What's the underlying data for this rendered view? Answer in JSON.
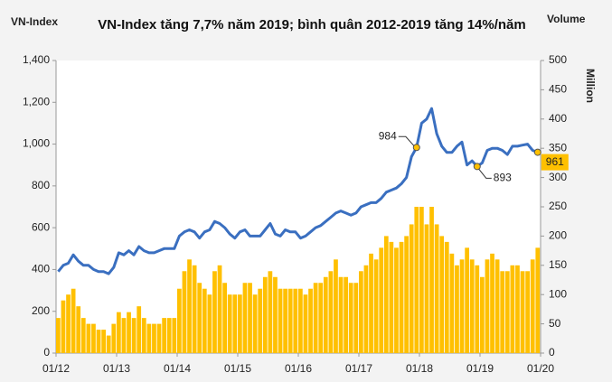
{
  "chart_data": {
    "type": "line-bar",
    "title": "VN-Index tăng 7,7% năm 2019; bình quân 2012-2019 tăng 14%/năm",
    "ylabel": "VN-Index",
    "y2label": "Volume",
    "y2unit": "Million",
    "x": [
      "2012-01",
      "2012-02",
      "2012-03",
      "2012-04",
      "2012-05",
      "2012-06",
      "2012-07",
      "2012-08",
      "2012-09",
      "2012-10",
      "2012-11",
      "2012-12",
      "2013-01",
      "2013-02",
      "2013-03",
      "2013-04",
      "2013-05",
      "2013-06",
      "2013-07",
      "2013-08",
      "2013-09",
      "2013-10",
      "2013-11",
      "2013-12",
      "2014-01",
      "2014-02",
      "2014-03",
      "2014-04",
      "2014-05",
      "2014-06",
      "2014-07",
      "2014-08",
      "2014-09",
      "2014-10",
      "2014-11",
      "2014-12",
      "2015-01",
      "2015-02",
      "2015-03",
      "2015-04",
      "2015-05",
      "2015-06",
      "2015-07",
      "2015-08",
      "2015-09",
      "2015-10",
      "2015-11",
      "2015-12",
      "2016-01",
      "2016-02",
      "2016-03",
      "2016-04",
      "2016-05",
      "2016-06",
      "2016-07",
      "2016-08",
      "2016-09",
      "2016-10",
      "2016-11",
      "2016-12",
      "2017-01",
      "2017-02",
      "2017-03",
      "2017-04",
      "2017-05",
      "2017-06",
      "2017-07",
      "2017-08",
      "2017-09",
      "2017-10",
      "2017-11",
      "2017-12",
      "2018-01",
      "2018-02",
      "2018-03",
      "2018-04",
      "2018-05",
      "2018-06",
      "2018-07",
      "2018-08",
      "2018-09",
      "2018-10",
      "2018-11",
      "2018-12",
      "2019-01",
      "2019-02",
      "2019-03",
      "2019-04",
      "2019-05",
      "2019-06",
      "2019-07",
      "2019-08",
      "2019-09",
      "2019-10",
      "2019-11",
      "2019-12"
    ],
    "series": [
      {
        "type": "line",
        "axis": "y",
        "color": "#3a6fc0",
        "values": [
          390,
          420,
          430,
          470,
          440,
          420,
          420,
          400,
          390,
          390,
          380,
          410,
          480,
          470,
          490,
          470,
          510,
          490,
          480,
          480,
          490,
          500,
          500,
          500,
          560,
          580,
          590,
          580,
          550,
          580,
          590,
          630,
          620,
          600,
          570,
          550,
          580,
          590,
          560,
          560,
          560,
          590,
          620,
          570,
          560,
          590,
          580,
          580,
          550,
          560,
          580,
          600,
          610,
          630,
          650,
          670,
          680,
          670,
          660,
          670,
          700,
          710,
          720,
          720,
          740,
          770,
          780,
          790,
          810,
          840,
          940,
          984,
          1100,
          1120,
          1170,
          1050,
          990,
          960,
          960,
          990,
          1010,
          900,
          920,
          893,
          910,
          970,
          980,
          980,
          970,
          950,
          990,
          990,
          995,
          1000,
          970,
          961
        ]
      },
      {
        "type": "bar",
        "axis": "y2",
        "color": "#ffc000",
        "values": [
          60,
          90,
          100,
          110,
          80,
          60,
          50,
          50,
          40,
          40,
          30,
          50,
          70,
          60,
          70,
          60,
          80,
          60,
          50,
          50,
          50,
          60,
          60,
          60,
          110,
          140,
          160,
          150,
          120,
          110,
          100,
          140,
          150,
          120,
          100,
          100,
          100,
          120,
          120,
          100,
          110,
          130,
          140,
          130,
          110,
          110,
          110,
          110,
          110,
          100,
          110,
          120,
          120,
          130,
          140,
          160,
          130,
          130,
          120,
          120,
          140,
          150,
          170,
          160,
          180,
          200,
          190,
          180,
          190,
          200,
          220,
          250,
          250,
          220,
          250,
          220,
          200,
          190,
          170,
          150,
          160,
          180,
          160,
          150,
          130,
          160,
          170,
          160,
          140,
          140,
          150,
          150,
          140,
          140,
          160,
          180
        ]
      }
    ],
    "xlim": [
      "2012-01",
      "2020-01"
    ],
    "xticks": [
      {
        "value": "2012-01",
        "label": "01/12"
      },
      {
        "value": "2013-01",
        "label": "01/13"
      },
      {
        "value": "2014-01",
        "label": "01/14"
      },
      {
        "value": "2015-01",
        "label": "01/15"
      },
      {
        "value": "2016-01",
        "label": "01/16"
      },
      {
        "value": "2017-01",
        "label": "01/17"
      },
      {
        "value": "2018-01",
        "label": "01/18"
      },
      {
        "value": "2019-01",
        "label": "01/19"
      },
      {
        "value": "2020-01",
        "label": "01/20"
      }
    ],
    "ylim": [
      0,
      1400
    ],
    "yticks": [
      0,
      200,
      400,
      600,
      800,
      {
        "value": 1000,
        "label": "1,000"
      },
      {
        "value": 1200,
        "label": "1,200"
      },
      {
        "value": 1400,
        "label": "1,400"
      }
    ],
    "y2lim": [
      0,
      500
    ],
    "y2ticks": [
      0,
      50,
      100,
      150,
      200,
      250,
      300,
      350,
      400,
      450,
      500
    ],
    "annotations": [
      {
        "text": "984",
        "x": "2017-12",
        "value": 984
      },
      {
        "text": "893",
        "x": "2018-12",
        "value": 893
      },
      {
        "text": "961",
        "x": "2019-12",
        "value": 961,
        "boxed": true
      }
    ]
  }
}
